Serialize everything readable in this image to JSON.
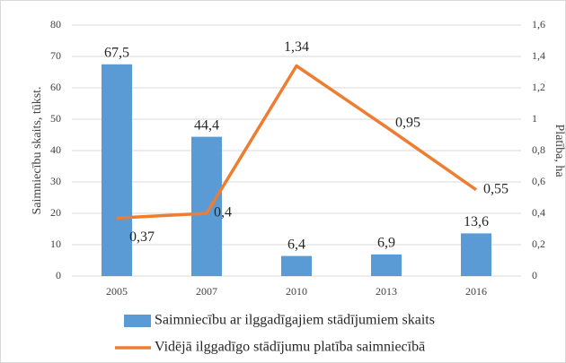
{
  "chart_data": {
    "type": "bar-line",
    "categories": [
      "2005",
      "2007",
      "2010",
      "2013",
      "2016"
    ],
    "series": [
      {
        "name": "Saimniecību ar ilggadīgajiem stādījumiem skaits",
        "type": "bar",
        "color": "#5b9bd5",
        "values": [
          67.5,
          44.4,
          6.4,
          6.9,
          13.6
        ],
        "value_labels": [
          "67,5",
          "44,4",
          "6,4",
          "6,9",
          "13,6"
        ]
      },
      {
        "name": "Vidējā ilggadīgo stādījumu platība saimniecībā",
        "type": "line",
        "axis": "y2",
        "color": "#ed7d31",
        "values": [
          0.37,
          0.4,
          1.34,
          0.95,
          0.55
        ],
        "value_labels": [
          "0,37",
          "0,4",
          "1,34",
          "0,95",
          "0,55"
        ]
      }
    ],
    "ylabel": "Saimniecību skaits, tūkst.",
    "y2label": "Platība, ha",
    "ylim": [
      0,
      80
    ],
    "yticks": [
      0,
      10,
      20,
      30,
      40,
      50,
      60,
      70,
      80
    ],
    "y2lim": [
      0,
      1.6
    ],
    "y2ticks": [
      0,
      {
        "value": 0.2,
        "label": "0,2"
      },
      {
        "value": 0.4,
        "label": "0,4"
      },
      {
        "value": 0.6,
        "label": "0,6"
      },
      {
        "value": 0.8,
        "label": "0,8"
      },
      1,
      {
        "value": 1.2,
        "label": "1,2"
      },
      {
        "value": 1.4,
        "label": "1,4"
      },
      {
        "value": 1.6,
        "label": "1,6"
      }
    ],
    "grid": true
  }
}
